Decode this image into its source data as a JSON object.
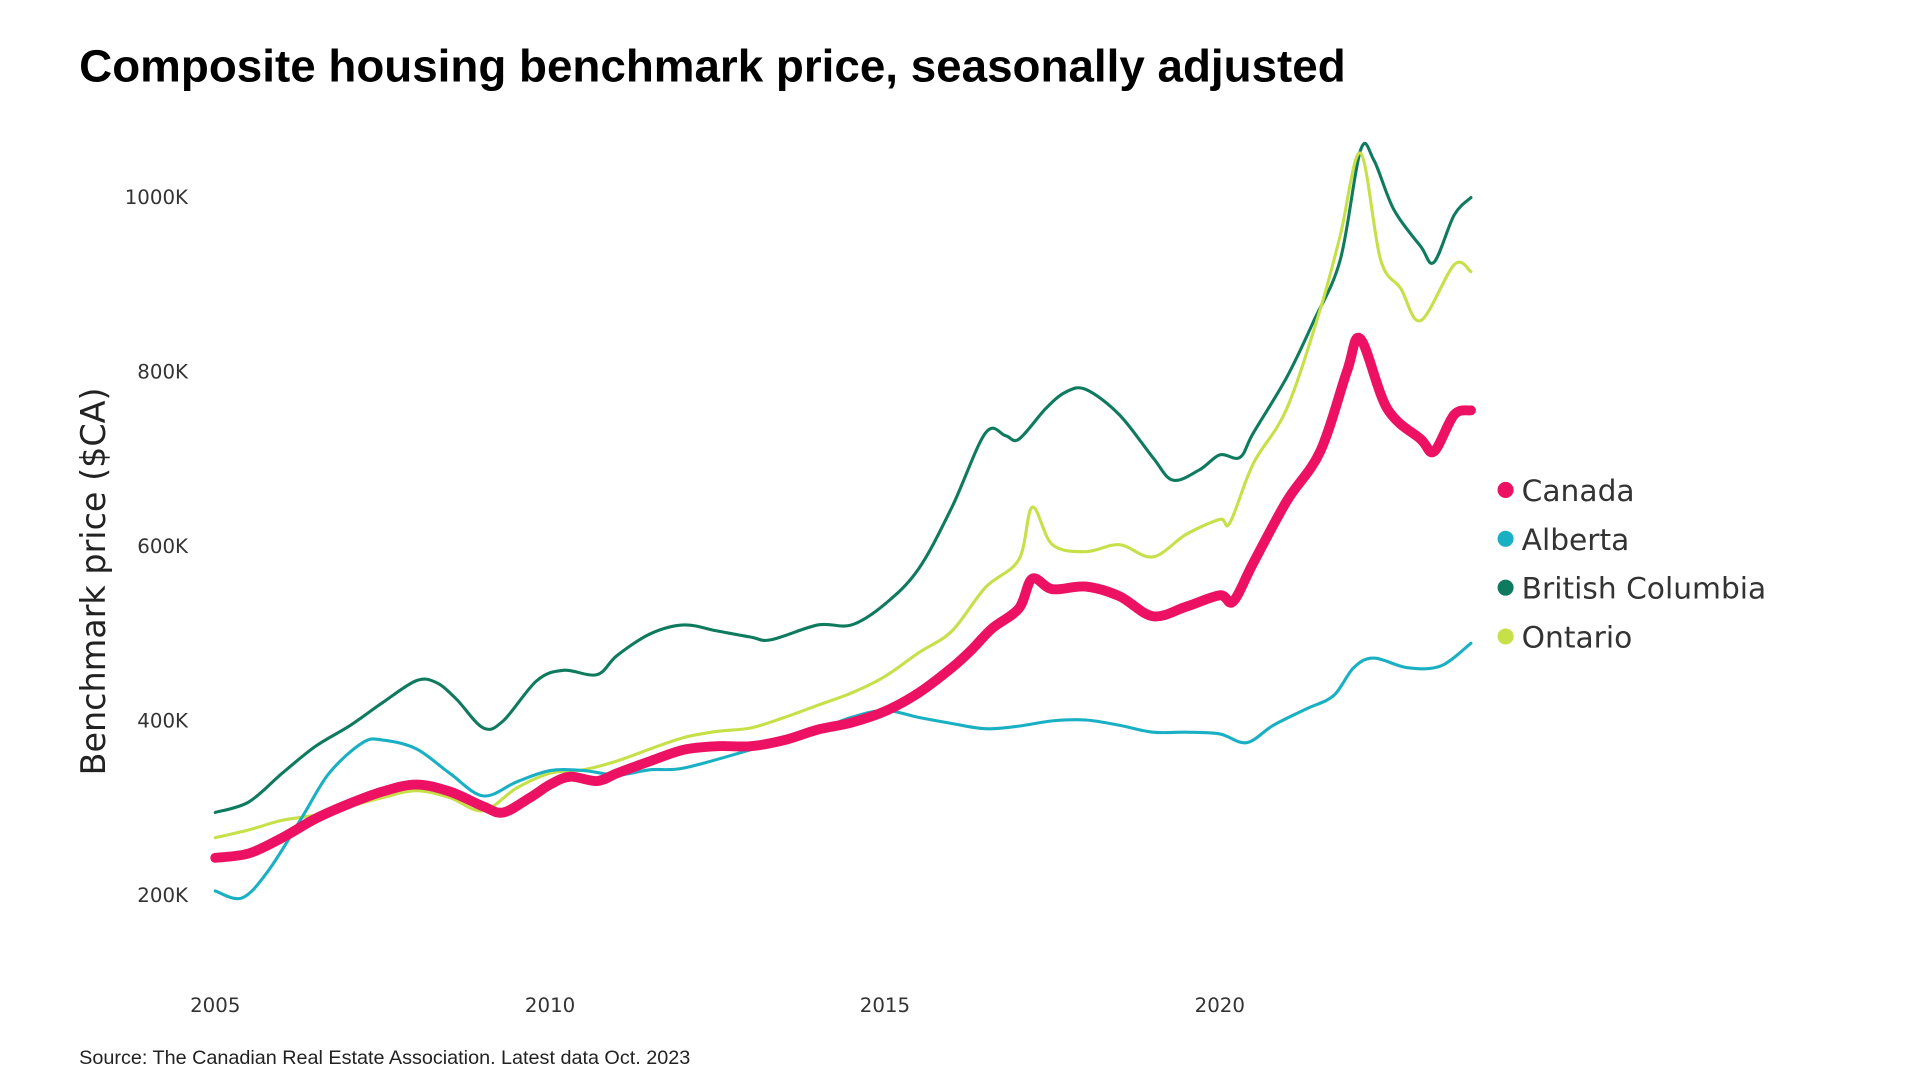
{
  "chart_data": {
    "type": "line",
    "title": "Composite housing benchmark price, seasonally adjusted",
    "ylabel": "Benchmark price ($CA)",
    "xlabel": "",
    "source": "Source: The Canadian Real Estate Association. Latest data Oct. 2023",
    "xlim": [
      2005,
      2023.75
    ],
    "ylim": [
      200,
      1000
    ],
    "x_ticks": [
      {
        "value": 2005,
        "label": "2005"
      },
      {
        "value": 2010,
        "label": "2010"
      },
      {
        "value": 2015,
        "label": "2015"
      },
      {
        "value": 2020,
        "label": "2020"
      }
    ],
    "y_ticks": [
      {
        "value": 1000,
        "label": "1000K"
      },
      {
        "value": 800,
        "label": "800K"
      },
      {
        "value": 600,
        "label": "600K"
      },
      {
        "value": 400,
        "label": "400K"
      },
      {
        "value": 200,
        "label": "200K"
      }
    ],
    "grid": false,
    "legend_position": "right",
    "series": [
      {
        "name": "British Columbia",
        "color": "#0E7A5E",
        "width": 2.5,
        "points": [
          [
            2005,
            294
          ],
          [
            2005.5,
            306
          ],
          [
            2006,
            339
          ],
          [
            2006.5,
            370
          ],
          [
            2007,
            393
          ],
          [
            2007.5,
            420
          ],
          [
            2008,
            445
          ],
          [
            2008.3,
            443
          ],
          [
            2008.6,
            424
          ],
          [
            2009,
            391
          ],
          [
            2009.3,
            399
          ],
          [
            2009.8,
            445
          ],
          [
            2010.2,
            457
          ],
          [
            2010.7,
            452
          ],
          [
            2011,
            474
          ],
          [
            2011.5,
            499
          ],
          [
            2012,
            509
          ],
          [
            2012.5,
            502
          ],
          [
            2013,
            495
          ],
          [
            2013.3,
            492
          ],
          [
            2014,
            509
          ],
          [
            2014.5,
            509
          ],
          [
            2015,
            533
          ],
          [
            2015.5,
            573
          ],
          [
            2016,
            644
          ],
          [
            2016.5,
            729
          ],
          [
            2016.8,
            726
          ],
          [
            2017,
            722
          ],
          [
            2017.4,
            757
          ],
          [
            2017.7,
            776
          ],
          [
            2018,
            779
          ],
          [
            2018.5,
            750
          ],
          [
            2019,
            701
          ],
          [
            2019.3,
            675
          ],
          [
            2019.7,
            687
          ],
          [
            2020,
            704
          ],
          [
            2020.3,
            701
          ],
          [
            2020.5,
            729
          ],
          [
            2021,
            793
          ],
          [
            2021.4,
            857
          ],
          [
            2021.8,
            928
          ],
          [
            2022.1,
            1053
          ],
          [
            2022.3,
            1042
          ],
          [
            2022.6,
            985
          ],
          [
            2023,
            943
          ],
          [
            2023.2,
            925
          ],
          [
            2023.5,
            979
          ],
          [
            2023.75,
            999
          ]
        ]
      },
      {
        "name": "Ontario",
        "color": "#C6E048",
        "width": 2.5,
        "points": [
          [
            2005,
            265
          ],
          [
            2005.5,
            274
          ],
          [
            2006,
            285
          ],
          [
            2006.5,
            291
          ],
          [
            2007,
            301
          ],
          [
            2007.5,
            311
          ],
          [
            2008,
            319
          ],
          [
            2008.5,
            311
          ],
          [
            2009,
            296
          ],
          [
            2009.5,
            322
          ],
          [
            2010,
            339
          ],
          [
            2010.5,
            343
          ],
          [
            2011,
            353
          ],
          [
            2011.5,
            367
          ],
          [
            2012,
            380
          ],
          [
            2012.5,
            387
          ],
          [
            2013,
            391
          ],
          [
            2013.5,
            403
          ],
          [
            2014,
            417
          ],
          [
            2014.5,
            431
          ],
          [
            2015,
            450
          ],
          [
            2015.5,
            477
          ],
          [
            2016,
            502
          ],
          [
            2016.5,
            552
          ],
          [
            2017,
            584
          ],
          [
            2017.2,
            644
          ],
          [
            2017.5,
            601
          ],
          [
            2018,
            593
          ],
          [
            2018.5,
            601
          ],
          [
            2019,
            587
          ],
          [
            2019.5,
            613
          ],
          [
            2020,
            630
          ],
          [
            2020.15,
            626
          ],
          [
            2020.5,
            694
          ],
          [
            2021,
            757
          ],
          [
            2021.5,
            871
          ],
          [
            2021.8,
            956
          ],
          [
            2022.1,
            1050
          ],
          [
            2022.4,
            928
          ],
          [
            2022.7,
            895
          ],
          [
            2023,
            858
          ],
          [
            2023.5,
            922
          ],
          [
            2023.75,
            914
          ]
        ]
      },
      {
        "name": "Alberta",
        "color": "#1AB0C4",
        "width": 2.5,
        "points": [
          [
            2005,
            204
          ],
          [
            2005.4,
            196
          ],
          [
            2005.8,
            228
          ],
          [
            2006.3,
            289
          ],
          [
            2006.7,
            339
          ],
          [
            2007.2,
            374
          ],
          [
            2007.5,
            377
          ],
          [
            2008,
            367
          ],
          [
            2008.5,
            339
          ],
          [
            2009,
            313
          ],
          [
            2009.5,
            329
          ],
          [
            2010,
            342
          ],
          [
            2010.5,
            342
          ],
          [
            2011,
            337
          ],
          [
            2011.5,
            343
          ],
          [
            2012,
            345
          ],
          [
            2013,
            366
          ],
          [
            2014,
            389
          ],
          [
            2014.5,
            403
          ],
          [
            2015,
            411
          ],
          [
            2015.5,
            403
          ],
          [
            2016,
            396
          ],
          [
            2016.5,
            390
          ],
          [
            2017,
            393
          ],
          [
            2017.5,
            399
          ],
          [
            2018,
            400
          ],
          [
            2018.5,
            394
          ],
          [
            2019,
            386
          ],
          [
            2019.5,
            386
          ],
          [
            2020,
            384
          ],
          [
            2020.4,
            374
          ],
          [
            2020.8,
            394
          ],
          [
            2021.3,
            413
          ],
          [
            2021.7,
            428
          ],
          [
            2022,
            460
          ],
          [
            2022.3,
            471
          ],
          [
            2022.8,
            460
          ],
          [
            2023.3,
            462
          ],
          [
            2023.75,
            488
          ]
        ]
      },
      {
        "name": "Canada",
        "color": "#EC1163",
        "width": 8,
        "points": [
          [
            2005,
            242
          ],
          [
            2005.5,
            247
          ],
          [
            2006,
            265
          ],
          [
            2006.5,
            287
          ],
          [
            2007,
            304
          ],
          [
            2007.5,
            318
          ],
          [
            2008,
            326
          ],
          [
            2008.5,
            318
          ],
          [
            2009,
            301
          ],
          [
            2009.3,
            294
          ],
          [
            2009.7,
            311
          ],
          [
            2010,
            326
          ],
          [
            2010.3,
            335
          ],
          [
            2010.7,
            330
          ],
          [
            2011,
            339
          ],
          [
            2011.5,
            353
          ],
          [
            2012,
            366
          ],
          [
            2012.5,
            370
          ],
          [
            2013,
            370
          ],
          [
            2013.5,
            377
          ],
          [
            2014,
            389
          ],
          [
            2014.5,
            397
          ],
          [
            2015,
            410
          ],
          [
            2015.5,
            431
          ],
          [
            2016,
            460
          ],
          [
            2016.3,
            481
          ],
          [
            2016.6,
            505
          ],
          [
            2017,
            528
          ],
          [
            2017.2,
            562
          ],
          [
            2017.5,
            550
          ],
          [
            2018,
            553
          ],
          [
            2018.5,
            542
          ],
          [
            2019,
            519
          ],
          [
            2019.5,
            530
          ],
          [
            2020,
            543
          ],
          [
            2020.2,
            536
          ],
          [
            2020.5,
            580
          ],
          [
            2021,
            651
          ],
          [
            2021.5,
            708
          ],
          [
            2021.9,
            800
          ],
          [
            2022.1,
            837
          ],
          [
            2022.5,
            757
          ],
          [
            2023,
            722
          ],
          [
            2023.2,
            708
          ],
          [
            2023.5,
            750
          ],
          [
            2023.75,
            755
          ]
        ]
      }
    ],
    "legend": [
      {
        "name": "Canada",
        "color": "#EC1163"
      },
      {
        "name": "Alberta",
        "color": "#1AB0C4"
      },
      {
        "name": "British Columbia",
        "color": "#0E7A5E"
      },
      {
        "name": "Ontario",
        "color": "#C6E048"
      }
    ]
  }
}
